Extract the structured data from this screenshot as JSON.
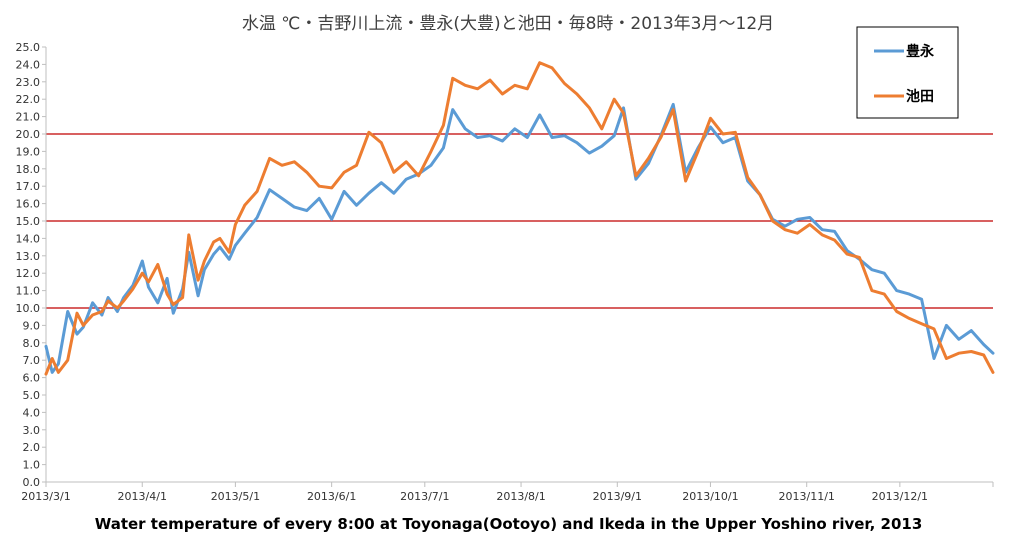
{
  "chart_data": {
    "type": "line",
    "title": "水温 ℃・吉野川上流・豊永(大豊)と池田・毎8時・2013年3月～12月",
    "caption": "Water temperature of every 8:00 at Toyonaga(Ootoyo) and Ikeda in the Upper Yoshino river, 2013",
    "xlabel": "",
    "ylabel": "",
    "ylim": [
      0,
      25
    ],
    "yticks": [
      "0.0",
      "1.0",
      "2.0",
      "3.0",
      "4.0",
      "5.0",
      "6.0",
      "7.0",
      "8.0",
      "9.0",
      "10.0",
      "11.0",
      "12.0",
      "13.0",
      "14.0",
      "15.0",
      "16.0",
      "17.0",
      "18.0",
      "19.0",
      "20.0",
      "21.0",
      "22.0",
      "23.0",
      "24.0",
      "25.0"
    ],
    "xticks": [
      "2013/3/1",
      "2013/4/1",
      "2013/5/1",
      "2013/6/1",
      "2013/7/1",
      "2013/8/1",
      "2013/9/1",
      "2013/10/1",
      "2013/11/1",
      "2013/12/1"
    ],
    "xtick_days": [
      0,
      31,
      61,
      92,
      122,
      153,
      184,
      214,
      245,
      275
    ],
    "x_end": "2013/12/31",
    "reference_lines": [
      10,
      15,
      20
    ],
    "reference_line_color": "#c00000",
    "grid": false,
    "legend": "top-right",
    "series": [
      {
        "name": "豊永",
        "color": "#5b9bd5",
        "x": [
          "2013/3/1",
          "2013/3/3",
          "2013/3/5",
          "2013/3/8",
          "2013/3/11",
          "2013/3/13",
          "2013/3/16",
          "2013/3/19",
          "2013/3/21",
          "2013/3/24",
          "2013/3/26",
          "2013/3/29",
          "2013/4/1",
          "2013/4/3",
          "2013/4/6",
          "2013/4/9",
          "2013/4/11",
          "2013/4/14",
          "2013/4/16",
          "2013/4/19",
          "2013/4/21",
          "2013/4/24",
          "2013/4/26",
          "2013/4/29",
          "2013/5/1",
          "2013/5/4",
          "2013/5/8",
          "2013/5/12",
          "2013/5/16",
          "2013/5/20",
          "2013/5/24",
          "2013/5/28",
          "2013/6/1",
          "2013/6/5",
          "2013/6/9",
          "2013/6/13",
          "2013/6/17",
          "2013/6/21",
          "2013/6/25",
          "2013/6/29",
          "2013/7/3",
          "2013/7/7",
          "2013/7/10",
          "2013/7/14",
          "2013/7/18",
          "2013/7/22",
          "2013/7/26",
          "2013/7/30",
          "2013/8/3",
          "2013/8/7",
          "2013/8/11",
          "2013/8/15",
          "2013/8/19",
          "2013/8/23",
          "2013/8/27",
          "2013/8/31",
          "2013/9/3",
          "2013/9/7",
          "2013/9/11",
          "2013/9/15",
          "2013/9/19",
          "2013/9/23",
          "2013/9/27",
          "2013/10/1",
          "2013/10/5",
          "2013/10/9",
          "2013/10/13",
          "2013/10/17",
          "2013/10/21",
          "2013/10/25",
          "2013/10/29",
          "2013/11/2",
          "2013/11/6",
          "2013/11/10",
          "2013/11/14",
          "2013/11/18",
          "2013/11/22",
          "2013/11/26",
          "2013/11/30",
          "2013/12/4",
          "2013/12/8",
          "2013/12/12",
          "2013/12/16",
          "2013/12/20",
          "2013/12/24",
          "2013/12/28",
          "2013/12/31"
        ],
        "values": [
          7.8,
          6.3,
          6.8,
          9.8,
          8.5,
          8.9,
          10.3,
          9.6,
          10.6,
          9.8,
          10.6,
          11.3,
          12.7,
          11.2,
          10.3,
          11.7,
          9.7,
          11.1,
          13.2,
          10.7,
          12.2,
          13.1,
          13.5,
          12.8,
          13.6,
          14.3,
          15.2,
          16.8,
          16.3,
          15.8,
          15.6,
          16.3,
          15.1,
          16.7,
          15.9,
          16.6,
          17.2,
          16.6,
          17.4,
          17.7,
          18.2,
          19.2,
          21.4,
          20.3,
          19.8,
          19.9,
          19.6,
          20.3,
          19.8,
          21.1,
          19.8,
          19.9,
          19.5,
          18.9,
          19.3,
          19.9,
          21.5,
          17.4,
          18.3,
          19.9,
          21.7,
          17.8,
          19.2,
          20.4,
          19.5,
          19.8,
          17.3,
          16.5,
          15.1,
          14.7,
          15.1,
          15.2,
          14.5,
          14.4,
          13.3,
          12.8,
          12.2,
          12.0,
          11.0,
          10.8,
          10.5,
          7.1,
          9.0,
          8.2,
          8.7,
          7.9,
          7.4
        ]
      },
      {
        "name": "池田",
        "color": "#ed7d31",
        "x": [
          "2013/3/1",
          "2013/3/3",
          "2013/3/5",
          "2013/3/8",
          "2013/3/11",
          "2013/3/13",
          "2013/3/16",
          "2013/3/19",
          "2013/3/21",
          "2013/3/24",
          "2013/3/26",
          "2013/3/29",
          "2013/4/1",
          "2013/4/3",
          "2013/4/6",
          "2013/4/9",
          "2013/4/11",
          "2013/4/14",
          "2013/4/16",
          "2013/4/19",
          "2013/4/21",
          "2013/4/24",
          "2013/4/26",
          "2013/4/29",
          "2013/5/1",
          "2013/5/4",
          "2013/5/8",
          "2013/5/12",
          "2013/5/16",
          "2013/5/20",
          "2013/5/24",
          "2013/5/28",
          "2013/6/1",
          "2013/6/5",
          "2013/6/9",
          "2013/6/13",
          "2013/6/17",
          "2013/6/21",
          "2013/6/25",
          "2013/6/29",
          "2013/7/3",
          "2013/7/7",
          "2013/7/10",
          "2013/7/14",
          "2013/7/18",
          "2013/7/22",
          "2013/7/26",
          "2013/7/30",
          "2013/8/3",
          "2013/8/7",
          "2013/8/11",
          "2013/8/15",
          "2013/8/19",
          "2013/8/23",
          "2013/8/27",
          "2013/8/31",
          "2013/9/3",
          "2013/9/7",
          "2013/9/11",
          "2013/9/15",
          "2013/9/19",
          "2013/9/23",
          "2013/9/27",
          "2013/10/1",
          "2013/10/5",
          "2013/10/9",
          "2013/10/13",
          "2013/10/17",
          "2013/10/21",
          "2013/10/25",
          "2013/10/29",
          "2013/11/2",
          "2013/11/6",
          "2013/11/10",
          "2013/11/14",
          "2013/11/18",
          "2013/11/22",
          "2013/11/26",
          "2013/11/30",
          "2013/12/4",
          "2013/12/8",
          "2013/12/12",
          "2013/12/16",
          "2013/12/20",
          "2013/12/24",
          "2013/12/28",
          "2013/12/31"
        ],
        "values": [
          6.2,
          7.1,
          6.3,
          7.0,
          9.7,
          9.0,
          9.6,
          9.8,
          10.4,
          10.0,
          10.4,
          11.1,
          12.0,
          11.5,
          12.5,
          10.8,
          10.2,
          10.6,
          14.2,
          11.6,
          12.7,
          13.8,
          14.0,
          13.2,
          14.8,
          15.9,
          16.7,
          18.6,
          18.2,
          18.4,
          17.8,
          17.0,
          16.9,
          17.8,
          18.2,
          20.1,
          19.5,
          17.8,
          18.4,
          17.6,
          19.0,
          20.5,
          23.2,
          22.8,
          22.6,
          23.1,
          22.3,
          22.8,
          22.6,
          24.1,
          23.8,
          22.9,
          22.3,
          21.5,
          20.3,
          22.0,
          21.2,
          17.6,
          18.6,
          19.8,
          21.4,
          17.3,
          19.0,
          20.9,
          20.0,
          20.1,
          17.5,
          16.5,
          15.0,
          14.5,
          14.3,
          14.8,
          14.2,
          13.9,
          13.1,
          12.9,
          11.0,
          10.8,
          9.8,
          9.4,
          9.1,
          8.8,
          7.1,
          7.4,
          7.5,
          7.3,
          6.3
        ]
      }
    ]
  }
}
